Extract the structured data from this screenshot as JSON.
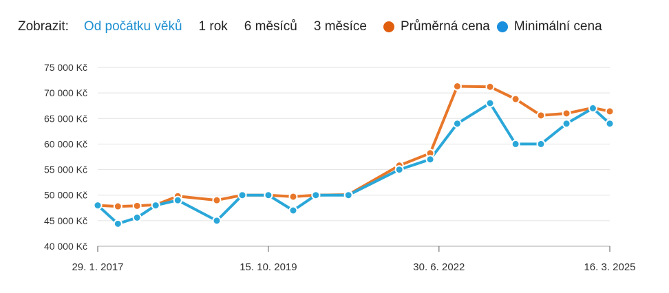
{
  "toolbar": {
    "label": "Zobrazit:",
    "ranges": [
      "Od počátku věků",
      "1 rok",
      "6 měsíců",
      "3 měsíce"
    ],
    "active_range": 0
  },
  "colors": {
    "avg": "#e8772a",
    "min": "#2aa7d8",
    "active_link": "#1e8fd0",
    "grid": "#e2e2e2"
  },
  "chart_data": {
    "type": "line",
    "x_axis": {
      "type": "date",
      "range": [
        "2017-01-29",
        "2025-03-16"
      ],
      "ticks": [
        {
          "date": "2017-01-29",
          "label": "29. 1. 2017"
        },
        {
          "date": "2019-10-15",
          "label": "15. 10. 2019"
        },
        {
          "date": "2022-06-30",
          "label": "30. 6. 2022"
        },
        {
          "date": "2025-03-16",
          "label": "16. 3. 2025"
        }
      ]
    },
    "y_axis": {
      "range": [
        40000,
        75000
      ],
      "ticks": [
        {
          "value": 40000,
          "label": "40 000 Kč"
        },
        {
          "value": 45000,
          "label": "45 000 Kč"
        },
        {
          "value": 50000,
          "label": "50 000 Kč"
        },
        {
          "value": 55000,
          "label": "55 000 Kč"
        },
        {
          "value": 60000,
          "label": "60 000 Kč"
        },
        {
          "value": 65000,
          "label": "65 000 Kč"
        },
        {
          "value": 70000,
          "label": "70 000 Kč"
        },
        {
          "value": 75000,
          "label": "75 000 Kč"
        }
      ]
    },
    "grid": true,
    "legend_position": "top-right",
    "series": [
      {
        "name": "Průměrná cena",
        "color": "#e8772a",
        "points": [
          [
            "2017-01-29",
            48000
          ],
          [
            "2017-05-26",
            47800
          ],
          [
            "2017-09-14",
            47900
          ],
          [
            "2017-12-31",
            48100
          ],
          [
            "2018-05-08",
            49800
          ],
          [
            "2018-12-20",
            49000
          ],
          [
            "2019-05-17",
            50000
          ],
          [
            "2019-10-15",
            50000
          ],
          [
            "2020-03-07",
            49700
          ],
          [
            "2020-07-16",
            50000
          ],
          [
            "2021-01-21",
            50100
          ],
          [
            "2021-11-12",
            55800
          ],
          [
            "2022-05-10",
            58200
          ],
          [
            "2022-10-14",
            71300
          ],
          [
            "2023-04-22",
            71200
          ],
          [
            "2023-09-17",
            68800
          ],
          [
            "2024-02-11",
            65600
          ],
          [
            "2024-07-08",
            66000
          ],
          [
            "2024-12-08",
            67100
          ],
          [
            "2025-03-16",
            66400
          ]
        ]
      },
      {
        "name": "Minimální cena",
        "color": "#2aa7d8",
        "points": [
          [
            "2017-01-29",
            48000
          ],
          [
            "2017-05-26",
            44400
          ],
          [
            "2017-09-14",
            45600
          ],
          [
            "2017-12-31",
            48000
          ],
          [
            "2018-05-08",
            49000
          ],
          [
            "2018-12-20",
            45000
          ],
          [
            "2019-05-17",
            50000
          ],
          [
            "2019-10-15",
            50000
          ],
          [
            "2020-03-07",
            47000
          ],
          [
            "2020-07-16",
            50000
          ],
          [
            "2021-01-21",
            50000
          ],
          [
            "2021-11-12",
            55000
          ],
          [
            "2022-05-10",
            57000
          ],
          [
            "2022-10-14",
            64000
          ],
          [
            "2023-04-22",
            68000
          ],
          [
            "2023-09-17",
            60000
          ],
          [
            "2024-02-11",
            60000
          ],
          [
            "2024-07-08",
            64000
          ],
          [
            "2024-12-08",
            67000
          ],
          [
            "2025-03-16",
            64000
          ]
        ]
      }
    ]
  }
}
